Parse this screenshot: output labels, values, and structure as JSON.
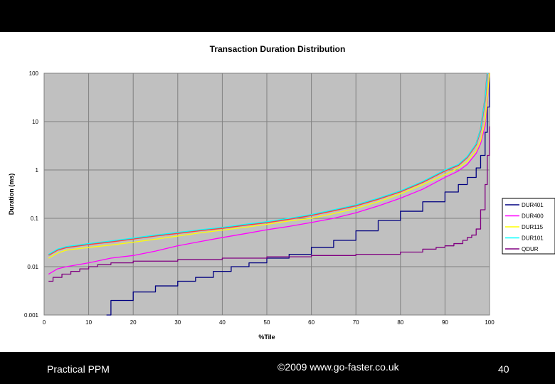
{
  "footer": {
    "left": "Practical PPM",
    "center": "©2009 www.go-faster.co.uk",
    "page": "40"
  },
  "colors": {
    "plot_bg": "#c0c0c0",
    "DUR401": "#000080",
    "DUR400": "#ff00ff",
    "DUR115": "#ffff00",
    "DUR101": "#00ffff",
    "DUR101_edge": "#ff4040",
    "QDUR": "#800080"
  },
  "chart_data": {
    "type": "line",
    "title": "Transaction Duration Distribution",
    "xlabel": "%Tile",
    "ylabel": "Duration (ms)",
    "xlim": [
      0,
      100
    ],
    "ylim": [
      0.001,
      100
    ],
    "yscale": "log",
    "xticks": [
      "0",
      "10",
      "20",
      "30",
      "40",
      "50",
      "60",
      "70",
      "80",
      "90",
      "100"
    ],
    "yticks": [
      "0.001",
      "0.01",
      "0.1",
      "1",
      "10",
      "100"
    ],
    "legend_position": "right",
    "series": [
      {
        "name": "DUR401",
        "color": "#000080",
        "step": true,
        "points": [
          [
            14,
            0.001
          ],
          [
            15,
            0.002
          ],
          [
            19,
            0.002
          ],
          [
            20,
            0.003
          ],
          [
            24,
            0.003
          ],
          [
            25,
            0.004
          ],
          [
            29,
            0.004
          ],
          [
            30,
            0.005
          ],
          [
            34,
            0.006
          ],
          [
            38,
            0.008
          ],
          [
            42,
            0.01
          ],
          [
            46,
            0.012
          ],
          [
            50,
            0.015
          ],
          [
            55,
            0.018
          ],
          [
            60,
            0.025
          ],
          [
            65,
            0.035
          ],
          [
            70,
            0.055
          ],
          [
            75,
            0.09
          ],
          [
            80,
            0.14
          ],
          [
            85,
            0.22
          ],
          [
            90,
            0.35
          ],
          [
            93,
            0.5
          ],
          [
            95,
            0.7
          ],
          [
            97,
            1.1
          ],
          [
            98,
            2
          ],
          [
            99,
            6
          ],
          [
            99.5,
            20
          ],
          [
            100,
            100
          ]
        ]
      },
      {
        "name": "DUR400",
        "color": "#ff00ff",
        "points": [
          [
            1,
            0.007
          ],
          [
            3,
            0.009
          ],
          [
            5,
            0.01
          ],
          [
            10,
            0.012
          ],
          [
            15,
            0.015
          ],
          [
            20,
            0.017
          ],
          [
            25,
            0.021
          ],
          [
            30,
            0.027
          ],
          [
            35,
            0.033
          ],
          [
            40,
            0.04
          ],
          [
            45,
            0.048
          ],
          [
            50,
            0.058
          ],
          [
            55,
            0.068
          ],
          [
            60,
            0.082
          ],
          [
            65,
            0.1
          ],
          [
            70,
            0.13
          ],
          [
            75,
            0.18
          ],
          [
            80,
            0.26
          ],
          [
            85,
            0.4
          ],
          [
            90,
            0.7
          ],
          [
            93,
            0.95
          ],
          [
            95,
            1.3
          ],
          [
            97,
            2.2
          ],
          [
            98,
            3.5
          ],
          [
            99,
            8
          ],
          [
            99.5,
            25
          ],
          [
            100,
            100
          ]
        ]
      },
      {
        "name": "DUR115",
        "color": "#ffff00",
        "points": [
          [
            1,
            0.015
          ],
          [
            3,
            0.019
          ],
          [
            5,
            0.022
          ],
          [
            10,
            0.025
          ],
          [
            15,
            0.028
          ],
          [
            20,
            0.032
          ],
          [
            25,
            0.037
          ],
          [
            30,
            0.043
          ],
          [
            35,
            0.05
          ],
          [
            40,
            0.057
          ],
          [
            45,
            0.065
          ],
          [
            50,
            0.075
          ],
          [
            55,
            0.088
          ],
          [
            60,
            0.1
          ],
          [
            65,
            0.125
          ],
          [
            70,
            0.16
          ],
          [
            75,
            0.22
          ],
          [
            80,
            0.32
          ],
          [
            85,
            0.5
          ],
          [
            90,
            0.8
          ],
          [
            93,
            1.1
          ],
          [
            95,
            1.5
          ],
          [
            97,
            2.5
          ],
          [
            98,
            4
          ],
          [
            99,
            10
          ],
          [
            99.5,
            30
          ],
          [
            100,
            100
          ]
        ]
      },
      {
        "name": "DUR101",
        "color": "#00ffff",
        "points": [
          [
            1,
            0.018
          ],
          [
            3,
            0.023
          ],
          [
            5,
            0.026
          ],
          [
            10,
            0.03
          ],
          [
            15,
            0.034
          ],
          [
            20,
            0.039
          ],
          [
            25,
            0.045
          ],
          [
            30,
            0.051
          ],
          [
            35,
            0.058
          ],
          [
            40,
            0.065
          ],
          [
            45,
            0.075
          ],
          [
            50,
            0.085
          ],
          [
            55,
            0.1
          ],
          [
            60,
            0.12
          ],
          [
            65,
            0.15
          ],
          [
            70,
            0.19
          ],
          [
            75,
            0.26
          ],
          [
            80,
            0.37
          ],
          [
            85,
            0.58
          ],
          [
            90,
            1.0
          ],
          [
            93,
            1.3
          ],
          [
            95,
            1.9
          ],
          [
            97,
            3.5
          ],
          [
            98,
            7
          ],
          [
            99,
            30
          ],
          [
            99.5,
            100
          ]
        ]
      },
      {
        "name": "QDUR",
        "color": "#800080",
        "step": true,
        "points": [
          [
            1,
            0.005
          ],
          [
            2,
            0.006
          ],
          [
            4,
            0.007
          ],
          [
            6,
            0.008
          ],
          [
            8,
            0.009
          ],
          [
            10,
            0.01
          ],
          [
            12,
            0.011
          ],
          [
            15,
            0.012
          ],
          [
            20,
            0.013
          ],
          [
            30,
            0.014
          ],
          [
            40,
            0.015
          ],
          [
            50,
            0.016
          ],
          [
            60,
            0.017
          ],
          [
            70,
            0.018
          ],
          [
            80,
            0.02
          ],
          [
            85,
            0.023
          ],
          [
            88,
            0.025
          ],
          [
            90,
            0.027
          ],
          [
            92,
            0.03
          ],
          [
            94,
            0.035
          ],
          [
            95,
            0.04
          ],
          [
            96,
            0.045
          ],
          [
            97,
            0.06
          ],
          [
            98,
            0.15
          ],
          [
            99,
            0.5
          ],
          [
            99.5,
            2
          ],
          [
            100,
            8
          ]
        ]
      }
    ]
  }
}
